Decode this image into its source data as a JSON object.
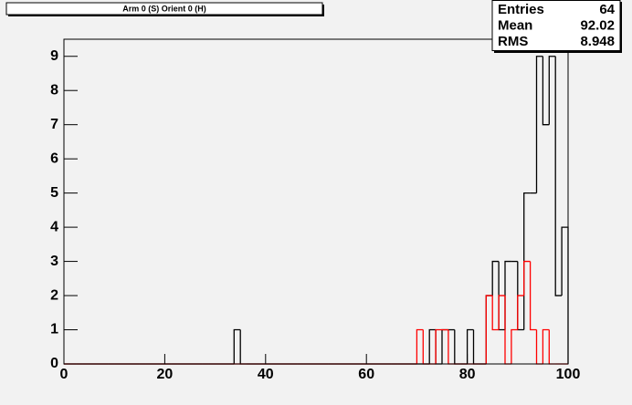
{
  "chart_data": {
    "type": "histogram",
    "title": "Arm 0 (S) Orient 0 (H)",
    "stats": {
      "labels": [
        "Entries",
        "Mean",
        "RMS"
      ],
      "values": [
        64,
        92.02,
        8.948
      ]
    },
    "bins": [
      0,
      1.25,
      2.5,
      3.75,
      5,
      6.25,
      7.5,
      8.75,
      10,
      11.25,
      12.5,
      13.75,
      15,
      16.25,
      17.5,
      18.75,
      20,
      21.25,
      22.5,
      23.75,
      25,
      26.25,
      27.5,
      28.75,
      30,
      31.25,
      32.5,
      33.75,
      35,
      36.25,
      37.5,
      38.75,
      40,
      41.25,
      42.5,
      43.75,
      45,
      46.25,
      47.5,
      48.75,
      50,
      51.25,
      52.5,
      53.75,
      55,
      56.25,
      57.5,
      58.75,
      60,
      61.25,
      62.5,
      63.75,
      65,
      66.25,
      67.5,
      68.75,
      70,
      71.25,
      72.5,
      73.75,
      75,
      76.25,
      77.5,
      78.75,
      80,
      81.25,
      82.5,
      83.75,
      85,
      86.25,
      87.5,
      88.75,
      90,
      91.25,
      92.5,
      93.75,
      95,
      96.25,
      97.5,
      98.75,
      100
    ],
    "series": [
      {
        "color": "#000000",
        "values": [
          0,
          0,
          0,
          0,
          0,
          0,
          0,
          0,
          0,
          0,
          0,
          0,
          0,
          0,
          0,
          0,
          0,
          0,
          0,
          0,
          0,
          0,
          0,
          0,
          0,
          0,
          0,
          1,
          0,
          0,
          0,
          0,
          0,
          0,
          0,
          0,
          0,
          0,
          0,
          0,
          0,
          0,
          0,
          0,
          0,
          0,
          0,
          0,
          0,
          0,
          0,
          0,
          0,
          0,
          0,
          0,
          0,
          0,
          1,
          0,
          1,
          1,
          0,
          0,
          1,
          0,
          0,
          2,
          3,
          1,
          3,
          3,
          1,
          5,
          5,
          9,
          7,
          9,
          2,
          4
        ]
      },
      {
        "color": "#ff0000",
        "values": [
          0,
          0,
          0,
          0,
          0,
          0,
          0,
          0,
          0,
          0,
          0,
          0,
          0,
          0,
          0,
          0,
          0,
          0,
          0,
          0,
          0,
          0,
          0,
          0,
          0,
          0,
          0,
          0,
          0,
          0,
          0,
          0,
          0,
          0,
          0,
          0,
          0,
          0,
          0,
          0,
          0,
          0,
          0,
          0,
          0,
          0,
          0,
          0,
          0,
          0,
          0,
          0,
          0,
          0,
          0,
          0,
          1,
          0,
          0,
          1,
          1,
          0,
          0,
          0,
          0,
          0,
          0,
          2,
          1,
          2,
          0,
          1,
          2,
          3,
          1,
          0,
          1,
          0,
          0,
          0
        ]
      }
    ],
    "xlim": [
      0,
      100
    ],
    "xticks": [
      0,
      20,
      40,
      60,
      80,
      100
    ],
    "ylim": [
      0,
      9.5
    ],
    "yticks": [
      0,
      1,
      2,
      3,
      4,
      5,
      6,
      7,
      8,
      9
    ]
  }
}
